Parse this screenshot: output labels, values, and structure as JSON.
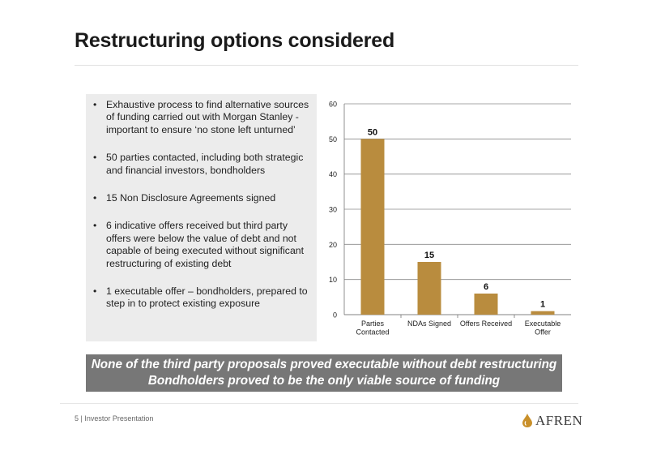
{
  "slide": {
    "title": "Restructuring options considered",
    "bullets": [
      "Exhaustive process to find alternative sources of funding carried out with Morgan Stanley - important to ensure ‘no stone left unturned’",
      "50 parties contacted, including both strategic and financial investors, bondholders",
      "15 Non Disclosure Agreements signed",
      "6 indicative offers received but third party offers were below the value of debt and not capable of being executed without significant restructuring of existing debt",
      "1 executable offer – bondholders, prepared to step in to protect existing exposure"
    ],
    "banner": [
      "None of the third party proposals proved executable without debt restructuring",
      "Bondholders proved to be the only viable source of funding"
    ],
    "footer": "5  |  Investor Presentation",
    "logo_text": "AFREN"
  },
  "chart_data": {
    "type": "bar",
    "categories": [
      [
        "Parties",
        "Contacted"
      ],
      [
        "NDAs Signed"
      ],
      [
        "Offers Received"
      ],
      [
        "Executable",
        "Offer"
      ]
    ],
    "values": [
      50,
      15,
      6,
      1
    ],
    "data_labels": [
      "50",
      "15",
      "6",
      "1"
    ],
    "yticks": [
      "0",
      "10",
      "20",
      "30",
      "40",
      "50",
      "60"
    ],
    "ylim": [
      0,
      60
    ],
    "grid": true,
    "legend": "none",
    "bar_color": "#b98c3e",
    "grid_color": "#8a8a8a"
  },
  "colors": {
    "bullet_box": "#ececec",
    "banner": "#777777",
    "logo_mark": "#c9902a"
  }
}
